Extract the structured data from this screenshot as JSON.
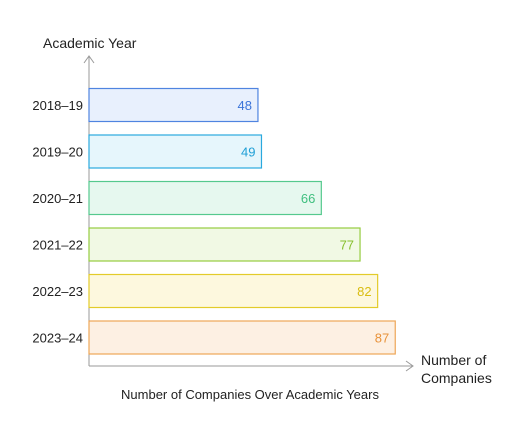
{
  "chart_data": {
    "type": "bar",
    "orientation": "horizontal",
    "categories": [
      "2018–19",
      "2019–20",
      "2020–21",
      "2021–22",
      "2022–23",
      "2023–24"
    ],
    "values": [
      48,
      49,
      66,
      77,
      82,
      87
    ],
    "ylabel": "Academic Year",
    "xlabel_line1": "Number of",
    "xlabel_line2": "Companies",
    "caption": "Number of Companies Over Academic Years",
    "xlim": [
      0,
      100
    ],
    "grid": false,
    "bar_colors": [
      {
        "fill": "#e8f0fd",
        "stroke": "#4f84e0",
        "text": "#3b74d9"
      },
      {
        "fill": "#e6f6fc",
        "stroke": "#2aa9de",
        "text": "#1f9fd6"
      },
      {
        "fill": "#e6f8ef",
        "stroke": "#55c98e",
        "text": "#3fbf7f"
      },
      {
        "fill": "#f1f9e4",
        "stroke": "#95cc3f",
        "text": "#86bf2c"
      },
      {
        "fill": "#fdf8de",
        "stroke": "#e3cb2a",
        "text": "#d9bd12"
      },
      {
        "fill": "#fdf0e3",
        "stroke": "#eea658",
        "text": "#e8923a"
      }
    ]
  }
}
